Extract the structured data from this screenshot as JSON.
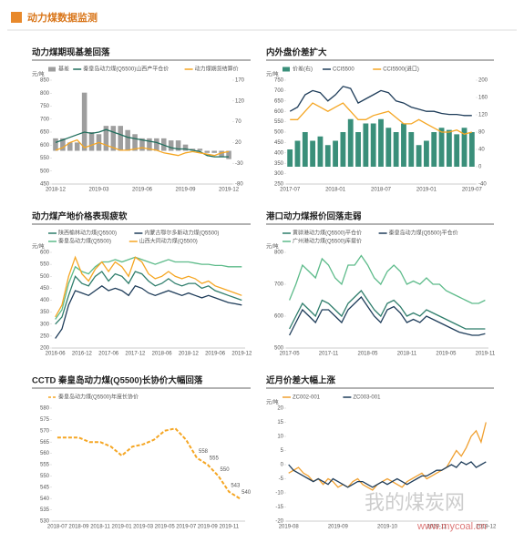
{
  "header": {
    "title": "动力煤数据监测"
  },
  "watermark": {
    "name": "我的煤炭网",
    "url": "www.mycoal.cn"
  },
  "chart_data": [
    {
      "type": "combo",
      "title": "动力煤期现基差回落",
      "unit": "元/吨",
      "categories": [
        "2018-12",
        null,
        null,
        null,
        null,
        null,
        "2019-03",
        null,
        null,
        null,
        null,
        null,
        "2019-06",
        null,
        null,
        null,
        null,
        null,
        "2019-09",
        null,
        null,
        null,
        null,
        null,
        "2019-12"
      ],
      "ylim": [
        450,
        850
      ],
      "yticks": [
        450,
        500,
        550,
        600,
        650,
        700,
        750,
        800,
        850
      ],
      "y2lim": [
        -80,
        170
      ],
      "y2ticks": [
        -80,
        -30,
        20,
        70,
        120,
        170
      ],
      "grid": false,
      "series": [
        {
          "name": "基差",
          "kind": "bar",
          "axis": "y2",
          "color": "#9e9e9e",
          "values": [
            30,
            30,
            20,
            20,
            140,
            45,
            40,
            60,
            60,
            60,
            50,
            40,
            30,
            30,
            30,
            30,
            25,
            25,
            15,
            5,
            5,
            -5,
            -5,
            -15,
            -20
          ]
        },
        {
          "name": "秦皇岛动力煤(Q5500)山西产平仓价",
          "kind": "line",
          "color": "#1f6e5c",
          "values": [
            610,
            620,
            630,
            640,
            650,
            645,
            650,
            660,
            650,
            640,
            630,
            625,
            620,
            615,
            610,
            600,
            590,
            585,
            585,
            580,
            575,
            560,
            555,
            555,
            555
          ]
        },
        {
          "name": "动力煤期货结算价",
          "kind": "line",
          "color": "#f5a623",
          "values": [
            580,
            590,
            610,
            620,
            590,
            600,
            610,
            600,
            590,
            580,
            580,
            585,
            590,
            585,
            580,
            570,
            565,
            560,
            570,
            575,
            570,
            565,
            560,
            570,
            575
          ]
        }
      ]
    },
    {
      "type": "combo",
      "title": "内外盘价差扩大",
      "unit": "元/吨",
      "categories": [
        "2017-07",
        null,
        null,
        null,
        null,
        null,
        "2018-01",
        null,
        null,
        null,
        null,
        null,
        "2018-07",
        null,
        null,
        null,
        null,
        null,
        "2019-01",
        null,
        null,
        null,
        null,
        null,
        "2019-07"
      ],
      "ylim": [
        250,
        750
      ],
      "yticks": [
        250,
        300,
        350,
        400,
        450,
        500,
        550,
        600,
        650,
        700,
        750
      ],
      "y2lim": [
        -40,
        200
      ],
      "y2ticks": [
        -40,
        0,
        40,
        80,
        120,
        160,
        200
      ],
      "grid": false,
      "series": [
        {
          "name": "价差(右)",
          "kind": "bar",
          "axis": "y2",
          "color": "#3a8f7a",
          "values": [
            40,
            60,
            80,
            60,
            70,
            50,
            60,
            80,
            110,
            80,
            100,
            100,
            110,
            90,
            80,
            100,
            80,
            50,
            60,
            80,
            90,
            85,
            75,
            90,
            80
          ]
        },
        {
          "name": "CCI5500",
          "kind": "line",
          "color": "#1f3d5a",
          "values": [
            600,
            620,
            680,
            700,
            690,
            650,
            680,
            720,
            710,
            640,
            660,
            680,
            700,
            690,
            650,
            640,
            620,
            610,
            600,
            600,
            590,
            585,
            585,
            580,
            580
          ]
        },
        {
          "name": "CCI5500(进口)",
          "kind": "line",
          "color": "#f5a623",
          "values": [
            560,
            560,
            600,
            640,
            620,
            600,
            620,
            640,
            600,
            560,
            560,
            580,
            590,
            600,
            570,
            540,
            540,
            560,
            540,
            520,
            500,
            500,
            510,
            490,
            500
          ]
        }
      ]
    },
    {
      "type": "line",
      "title": "动力煤产地价格表现疲软",
      "unit": "元/吨",
      "categories": [
        "2016-06",
        null,
        null,
        null,
        "2016-12",
        null,
        null,
        null,
        "2017-06",
        null,
        null,
        null,
        "2017-12",
        null,
        null,
        null,
        "2018-06",
        null,
        null,
        null,
        "2018-12",
        null,
        null,
        null,
        "2019-06",
        null,
        null,
        null,
        "2019-12"
      ],
      "ylim": [
        200,
        600
      ],
      "yticks": [
        200,
        250,
        300,
        350,
        400,
        450,
        500,
        550,
        600
      ],
      "grid": false,
      "series": [
        {
          "name": "陕西榆林动力煤(Q5500)",
          "color": "#2e7d6b",
          "values": [
            300,
            330,
            420,
            500,
            470,
            460,
            500,
            520,
            480,
            510,
            500,
            470,
            520,
            510,
            480,
            460,
            470,
            490,
            470,
            460,
            470,
            470,
            450,
            460,
            440,
            430,
            420,
            410,
            400
          ]
        },
        {
          "name": "内蒙古鄂尔多斯动力煤(Q5500)",
          "color": "#1f3d5a",
          "values": [
            240,
            280,
            380,
            440,
            430,
            420,
            440,
            460,
            440,
            450,
            440,
            420,
            460,
            450,
            430,
            420,
            430,
            440,
            430,
            420,
            430,
            420,
            410,
            420,
            410,
            400,
            390,
            385,
            380
          ]
        },
        {
          "name": "秦皇岛动力煤(Q5500)",
          "color": "#5dbb8a",
          "values": [
            320,
            360,
            470,
            540,
            520,
            510,
            540,
            560,
            560,
            570,
            560,
            570,
            580,
            570,
            560,
            550,
            560,
            570,
            560,
            560,
            560,
            555,
            550,
            550,
            545,
            545,
            540,
            540,
            540
          ]
        },
        {
          "name": "山西大同动力煤(Q5500)",
          "color": "#f5a623",
          "values": [
            330,
            380,
            500,
            580,
            510,
            480,
            530,
            560,
            520,
            560,
            540,
            500,
            580,
            560,
            510,
            490,
            500,
            520,
            500,
            490,
            500,
            490,
            470,
            480,
            460,
            450,
            440,
            430,
            420
          ]
        }
      ]
    },
    {
      "type": "line",
      "title": "港口动力煤报价回落走弱",
      "unit": "元/吨",
      "categories": [
        "2017-05",
        null,
        null,
        null,
        null,
        null,
        "2017-11",
        null,
        null,
        null,
        null,
        null,
        "2018-05",
        null,
        null,
        null,
        null,
        null,
        "2018-11",
        null,
        null,
        null,
        null,
        null,
        "2019-05",
        null,
        null,
        null,
        null,
        null,
        "2019-11"
      ],
      "ylim": [
        500,
        800
      ],
      "yticks": [
        500,
        600,
        700,
        800
      ],
      "grid": false,
      "series": [
        {
          "name": "黄骅港动力煤(Q5500)平仓价",
          "color": "#2e7d6b",
          "values": [
            560,
            600,
            640,
            620,
            600,
            650,
            640,
            620,
            600,
            640,
            660,
            680,
            650,
            620,
            600,
            640,
            650,
            630,
            600,
            610,
            600,
            620,
            610,
            600,
            590,
            580,
            570,
            560,
            560,
            560,
            560
          ]
        },
        {
          "name": "秦皇岛动力煤(Q5500)平仓价",
          "color": "#1f3d5a",
          "values": [
            540,
            580,
            620,
            600,
            580,
            620,
            620,
            600,
            580,
            620,
            640,
            660,
            630,
            600,
            580,
            620,
            630,
            610,
            580,
            590,
            580,
            600,
            590,
            580,
            570,
            560,
            550,
            545,
            540,
            540,
            545
          ]
        },
        {
          "name": "广州港动力煤(Q5500)库提价",
          "color": "#5dbb8a",
          "values": [
            650,
            700,
            760,
            740,
            720,
            780,
            760,
            720,
            700,
            760,
            760,
            790,
            760,
            720,
            700,
            740,
            760,
            740,
            700,
            710,
            700,
            720,
            700,
            700,
            680,
            670,
            660,
            650,
            640,
            640,
            650
          ]
        }
      ]
    },
    {
      "type": "line",
      "title": "CCTD 秦皇岛动力煤(Q5500)长协价大幅回落",
      "categories": [
        "2018-07",
        null,
        "2018-09",
        null,
        "2018-11",
        null,
        "2019-01",
        null,
        "2019-03",
        null,
        "2019-05",
        null,
        "2019-07",
        null,
        "2019-09",
        null,
        "2019-11",
        null
      ],
      "ylim": [
        530,
        580
      ],
      "yticks": [
        530,
        535,
        540,
        545,
        550,
        555,
        560,
        565,
        570,
        575,
        580
      ],
      "grid": false,
      "series": [
        {
          "name": "秦皇岛动力煤(Q5500)年度长协价",
          "color": "#f5a623",
          "dash": true,
          "values": [
            567,
            567,
            567,
            565,
            565,
            563,
            559,
            563,
            564,
            566,
            570,
            571,
            566,
            558,
            555,
            550,
            543,
            540
          ]
        }
      ]
    },
    {
      "type": "line",
      "title": "近月价差大幅上涨",
      "unit": "元/吨",
      "categories": [
        "2019-08",
        null,
        null,
        null,
        null,
        null,
        null,
        null,
        null,
        null,
        "2019-09",
        null,
        null,
        null,
        null,
        null,
        null,
        null,
        null,
        null,
        "2019-10",
        null,
        null,
        null,
        null,
        null,
        null,
        null,
        null,
        null,
        "2019-11",
        null,
        null,
        null,
        null,
        null,
        null,
        null,
        null,
        null,
        "2019-12"
      ],
      "ylim": [
        -20,
        20
      ],
      "yticks": [
        -20,
        -15,
        -10,
        -5,
        0,
        5,
        10,
        15,
        20
      ],
      "grid": false,
      "series": [
        {
          "name": "ZC002-001",
          "color": "#f0a030",
          "values": [
            -3,
            -2,
            -1,
            -3,
            -4,
            -6,
            -5,
            -7,
            -5,
            -6,
            -8,
            -7,
            -8,
            -6,
            -5,
            -7,
            -8,
            -9,
            -7,
            -6,
            -5,
            -6,
            -7,
            -8,
            -6,
            -5,
            -4,
            -3,
            -5,
            -4,
            -3,
            -2,
            -1,
            2,
            5,
            3,
            6,
            10,
            12,
            8,
            15
          ]
        },
        {
          "name": "ZC003-001",
          "color": "#1f3d5a",
          "values": [
            0,
            -2,
            -3,
            -4,
            -5,
            -6,
            -5,
            -6,
            -7,
            -5,
            -6,
            -7,
            -8,
            -7,
            -6,
            -6,
            -7,
            -8,
            -7,
            -6,
            -7,
            -6,
            -5,
            -6,
            -7,
            -6,
            -5,
            -4,
            -4,
            -3,
            -2,
            -2,
            -1,
            0,
            -1,
            1,
            0,
            1,
            -1,
            0,
            1
          ]
        }
      ]
    }
  ]
}
